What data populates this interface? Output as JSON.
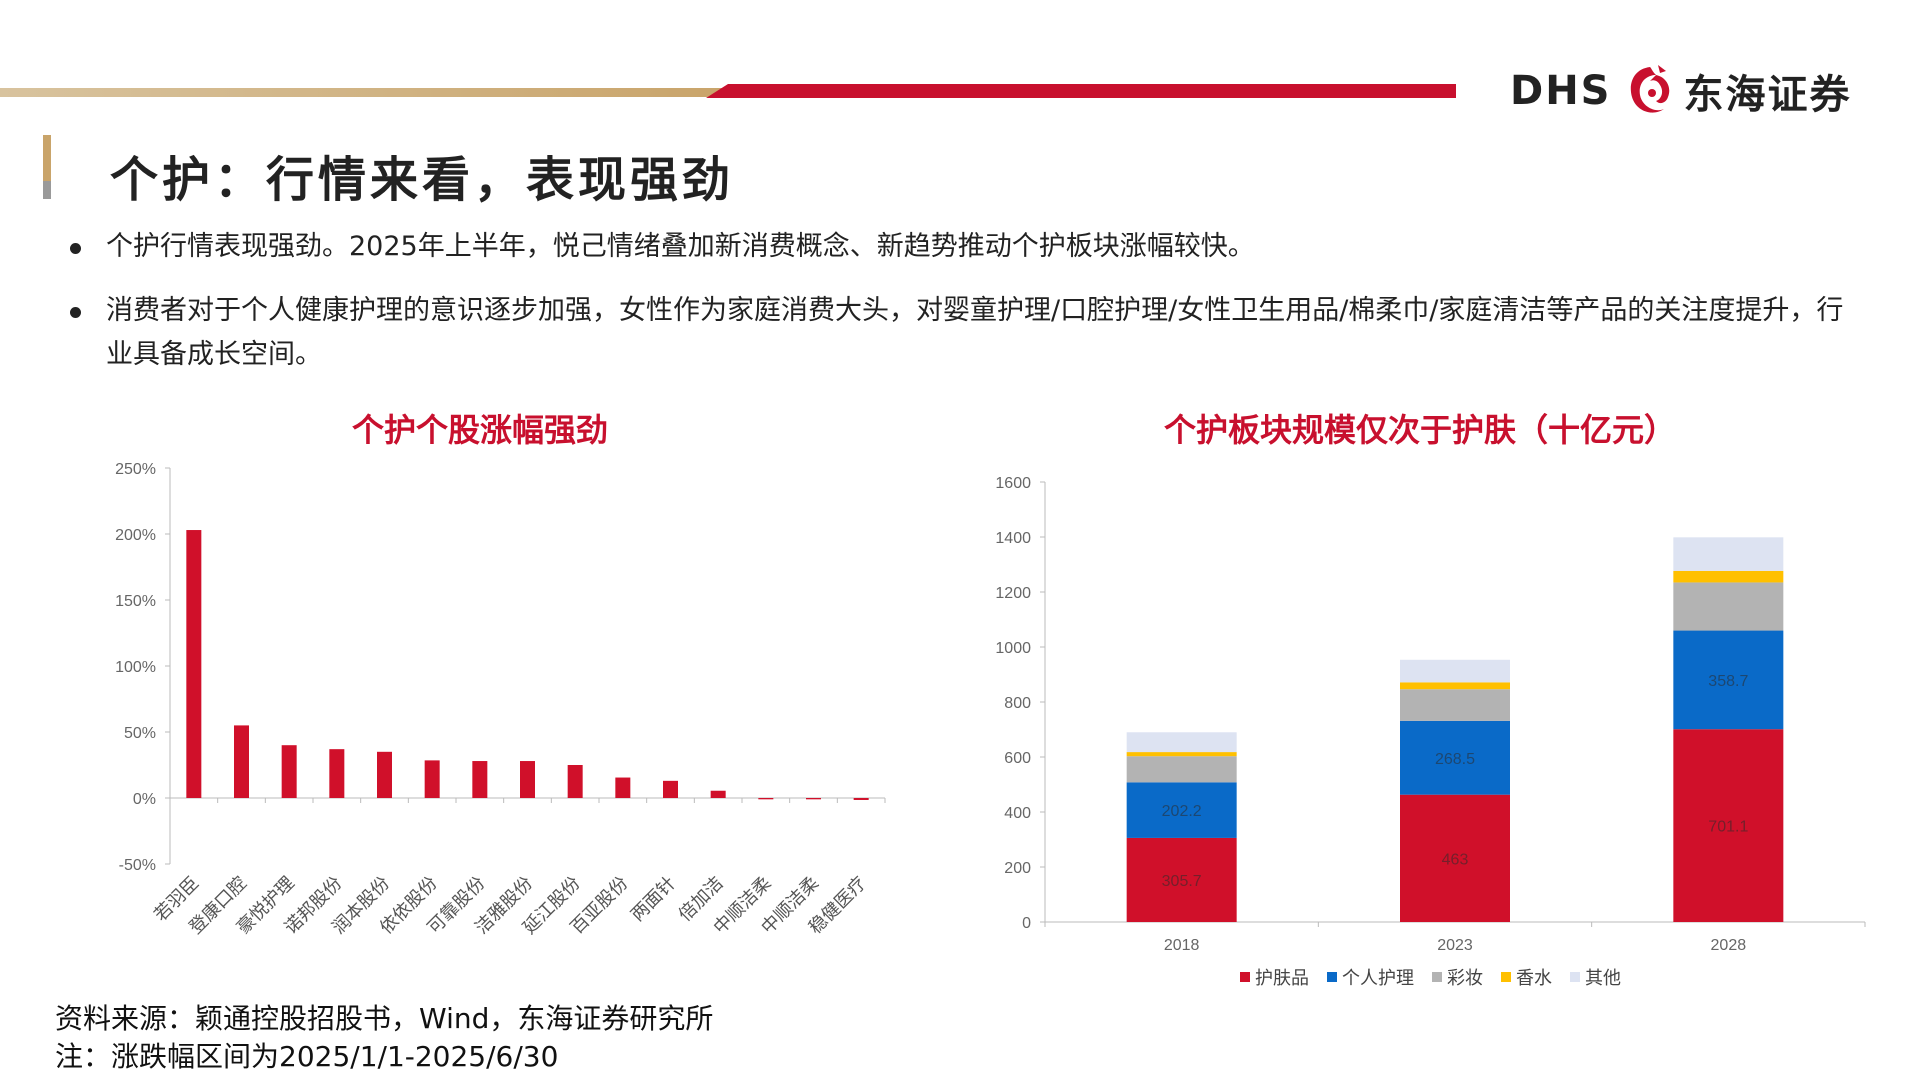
{
  "header": {
    "logo_latin": "DHS",
    "logo_cn": "东海证券",
    "brand_colors": {
      "red": "#c8102e",
      "gold": "#c9a46a"
    }
  },
  "page": {
    "title": "个护：行情来看，表现强劲",
    "bullets": [
      "个护行情表现强劲。2025年上半年，悦己情绪叠加新消费概念、新趋势推动个护板块涨幅较快。",
      "消费者对于个人健康护理的意识逐步加强，女性作为家庭消费大头，对婴童护理/口腔护理/女性卫生用品/棉柔巾/家庭清洁等产品的关注度提升，行业具备成长空间。"
    ]
  },
  "footer": {
    "source": "资料来源：颖通控股招股书，Wind，东海证券研究所",
    "note": "注：涨跌幅区间为2025/1/1-2025/6/30"
  },
  "chart_data": [
    {
      "type": "bar",
      "title": "个护个股涨幅强劲",
      "categories": [
        "若羽臣",
        "登康口腔",
        "豪悦护理",
        "诺邦股份",
        "润本股份",
        "依依股份",
        "可靠股份",
        "洁雅股份",
        "延江股份",
        "百亚股份",
        "两面针",
        "倍加洁",
        "中顺洁柔",
        "中顺洁柔",
        "稳健医疗"
      ],
      "values": [
        203,
        55,
        40,
        37,
        35,
        28.5,
        28,
        28,
        25,
        15.5,
        13,
        5.5,
        -1,
        -1,
        -1.5
      ],
      "yticks": [
        "250%",
        "200%",
        "150%",
        "100%",
        "50%",
        "0%",
        "-50%"
      ],
      "ylim": [
        -50,
        250
      ],
      "color": "#d0102a"
    },
    {
      "type": "bar",
      "stacked": true,
      "title": "个护板块规模仅次于护肤（十亿元）",
      "categories": [
        "2018",
        "2023",
        "2028"
      ],
      "series": [
        {
          "name": "护肤品",
          "color": "#d0102a",
          "values": [
            305.7,
            463,
            701.1
          ],
          "labels": [
            "305.7",
            "463",
            "701.1"
          ]
        },
        {
          "name": "个人护理",
          "color": "#0a6ac8",
          "values": [
            202.2,
            268.5,
            358.7
          ],
          "labels": [
            "202.2",
            "268.5",
            "358.7"
          ]
        },
        {
          "name": "彩妆",
          "color": "#b3b3b3",
          "values": [
            95,
            115,
            175
          ],
          "labels": [
            "",
            "",
            ""
          ]
        },
        {
          "name": "香水",
          "color": "#ffc000",
          "values": [
            15,
            25,
            42
          ],
          "labels": [
            "",
            "",
            ""
          ]
        },
        {
          "name": "其他",
          "color": "#dde3f2",
          "values": [
            72,
            82,
            122
          ],
          "labels": [
            "",
            "",
            ""
          ]
        }
      ],
      "yticks": [
        "1600",
        "1400",
        "1200",
        "1000",
        "800",
        "600",
        "400",
        "200",
        "0"
      ],
      "ylim": [
        0,
        1600
      ]
    }
  ]
}
